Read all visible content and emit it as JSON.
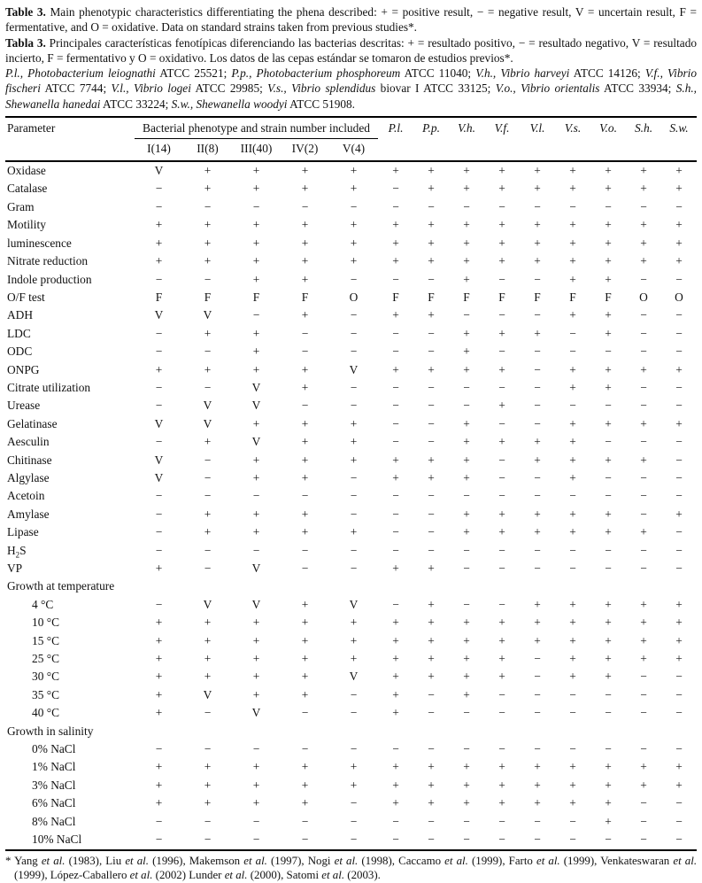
{
  "captions": [
    {
      "name": "caption-english",
      "segments": [
        {
          "t": "Table 3.",
          "b": true
        },
        {
          "t": " Main phenotypic characteristics differentiating the phena described: + = positive result, − = negative result, V = uncertain result, F = fermentative, and O = oxidative. Data on standard strains taken from previous studies*."
        }
      ]
    },
    {
      "name": "caption-spanish",
      "segments": [
        {
          "t": "Tabla 3.",
          "b": true
        },
        {
          "t": " Principales características fenotípicas diferenciando las bacterias descritas: + = resultado positivo, − = resultado negativo, V = resultado incierto, F = fermentativo y O = oxidativo. Los datos de las cepas estándar se tomaron de estudios previos*."
        }
      ]
    },
    {
      "name": "caption-abbreviations",
      "segments": [
        {
          "t": "P.l., Photobacterium leiognathi",
          "i": true
        },
        {
          "t": " ATCC 25521; "
        },
        {
          "t": "P.p., Photobacterium phosphoreum",
          "i": true
        },
        {
          "t": " ATCC 11040; "
        },
        {
          "t": "V.h., Vibrio harveyi",
          "i": true
        },
        {
          "t": " ATCC 14126; "
        },
        {
          "t": "V.f., Vibrio fischeri",
          "i": true
        },
        {
          "t": " ATCC 7744; "
        },
        {
          "t": "V.l., Vibrio logei",
          "i": true
        },
        {
          "t": " ATCC 29985; "
        },
        {
          "t": "V.s., Vibrio splendidus",
          "i": true
        },
        {
          "t": " biovar I ATCC 33125; "
        },
        {
          "t": "V.o., Vibrio orientalis",
          "i": true
        },
        {
          "t": " ATCC 33934; "
        },
        {
          "t": "S.h., Shewanella hanedai",
          "i": true
        },
        {
          "t": " ATCC 33224; "
        },
        {
          "t": "S.w., Shewanella woodyi",
          "i": true
        },
        {
          "t": " ATCC 51908."
        }
      ]
    }
  ],
  "table": {
    "param_header": "Parameter",
    "group_header": "Bacterial phenotype and strain number included",
    "phenon_headers": [
      "I(14)",
      "II(8)",
      "III(40)",
      "IV(2)",
      "V(4)"
    ],
    "strain_headers": [
      "P.l.",
      "P.p.",
      "V.h.",
      "V.f.",
      "V.l.",
      "V.s.",
      "V.o.",
      "S.h.",
      "S.w."
    ],
    "rows": [
      {
        "label": "Oxidase",
        "values": [
          "V",
          "+",
          "+",
          "+",
          "+",
          "+",
          "+",
          "+",
          "+",
          "+",
          "+",
          "+",
          "+",
          "+"
        ]
      },
      {
        "label": "Catalase",
        "values": [
          "−",
          "+",
          "+",
          "+",
          "+",
          "−",
          "+",
          "+",
          "+",
          "+",
          "+",
          "+",
          "+",
          "+"
        ]
      },
      {
        "label": "Gram",
        "values": [
          "−",
          "−",
          "−",
          "−",
          "−",
          "−",
          "−",
          "−",
          "−",
          "−",
          "−",
          "−",
          "−",
          "−"
        ]
      },
      {
        "label": "Motility",
        "values": [
          "+",
          "+",
          "+",
          "+",
          "+",
          "+",
          "+",
          "+",
          "+",
          "+",
          "+",
          "+",
          "+",
          "+"
        ]
      },
      {
        "label": "luminescence",
        "values": [
          "+",
          "+",
          "+",
          "+",
          "+",
          "+",
          "+",
          "+",
          "+",
          "+",
          "+",
          "+",
          "+",
          "+"
        ]
      },
      {
        "label": "Nitrate reduction",
        "values": [
          "+",
          "+",
          "+",
          "+",
          "+",
          "+",
          "+",
          "+",
          "+",
          "+",
          "+",
          "+",
          "+",
          "+"
        ]
      },
      {
        "label": "Indole production",
        "values": [
          "−",
          "−",
          "+",
          "+",
          "−",
          "−",
          "−",
          "+",
          "−",
          "−",
          "+",
          "+",
          "−",
          "−"
        ]
      },
      {
        "label": "O/F test",
        "values": [
          "F",
          "F",
          "F",
          "F",
          "O",
          "F",
          "F",
          "F",
          "F",
          "F",
          "F",
          "F",
          "O",
          "O"
        ]
      },
      {
        "label": "ADH",
        "values": [
          "V",
          "V",
          "−",
          "+",
          "−",
          "+",
          "+",
          "−",
          "−",
          "−",
          "+",
          "+",
          "−",
          "−"
        ]
      },
      {
        "label": "LDC",
        "values": [
          "−",
          "+",
          "+",
          "−",
          "−",
          "−",
          "−",
          "+",
          "+",
          "+",
          "−",
          "+",
          "−",
          "−"
        ]
      },
      {
        "label": "ODC",
        "values": [
          "−",
          "−",
          "+",
          "−",
          "−",
          "−",
          "−",
          "+",
          "−",
          "−",
          "−",
          "−",
          "−",
          "−"
        ]
      },
      {
        "label": "ONPG",
        "values": [
          "+",
          "+",
          "+",
          "+",
          "V",
          "+",
          "+",
          "+",
          "+",
          "−",
          "+",
          "+",
          "+",
          "+"
        ]
      },
      {
        "label": "Citrate utilization",
        "values": [
          "−",
          "−",
          "V",
          "+",
          "−",
          "−",
          "−",
          "−",
          "−",
          "−",
          "+",
          "+",
          "−",
          "−"
        ]
      },
      {
        "label": "Urease",
        "values": [
          "−",
          "V",
          "V",
          "−",
          "−",
          "−",
          "−",
          "−",
          "+",
          "−",
          "−",
          "−",
          "−",
          "−"
        ]
      },
      {
        "label": "Gelatinase",
        "values": [
          "V",
          "V",
          "+",
          "+",
          "+",
          "−",
          "−",
          "+",
          "−",
          "−",
          "+",
          "+",
          "+",
          "+"
        ]
      },
      {
        "label": "Aesculin",
        "values": [
          "−",
          "+",
          "V",
          "+",
          "+",
          "−",
          "−",
          "+",
          "+",
          "+",
          "+",
          "−",
          "−",
          "−"
        ]
      },
      {
        "label": "Chitinase",
        "values": [
          "V",
          "−",
          "+",
          "+",
          "+",
          "+",
          "+",
          "+",
          "−",
          "+",
          "+",
          "+",
          "+",
          "−"
        ]
      },
      {
        "label": "Algylase",
        "values": [
          "V",
          "−",
          "+",
          "+",
          "−",
          "+",
          "+",
          "+",
          "−",
          "−",
          "+",
          "−",
          "−",
          "−"
        ]
      },
      {
        "label": "Acetoin",
        "values": [
          "−",
          "−",
          "−",
          "−",
          "−",
          "−",
          "−",
          "−",
          "−",
          "−",
          "−",
          "−",
          "−",
          "−"
        ]
      },
      {
        "label": "Amylase",
        "values": [
          "−",
          "+",
          "+",
          "+",
          "−",
          "−",
          "−",
          "+",
          "+",
          "+",
          "+",
          "+",
          "−",
          "+"
        ]
      },
      {
        "label": "Lipase",
        "values": [
          "−",
          "+",
          "+",
          "+",
          "+",
          "−",
          "−",
          "+",
          "+",
          "+",
          "+",
          "+",
          "+",
          "−"
        ]
      },
      {
        "label": "H₂S",
        "label_segments": [
          {
            "t": "H"
          },
          {
            "t": "2",
            "sub": true
          },
          {
            "t": "S"
          }
        ],
        "values": [
          "−",
          "−",
          "−",
          "−",
          "−",
          "−",
          "−",
          "−",
          "−",
          "−",
          "−",
          "−",
          "−",
          "−"
        ]
      },
      {
        "label": "VP",
        "values": [
          "+",
          "−",
          "V",
          "−",
          "−",
          "+",
          "+",
          "−",
          "−",
          "−",
          "−",
          "−",
          "−",
          "−"
        ]
      },
      {
        "label": "Growth at temperature",
        "section": true
      },
      {
        "label": "4 °C",
        "indent": true,
        "values": [
          "−",
          "V",
          "V",
          "+",
          "V",
          "−",
          "+",
          "−",
          "−",
          "+",
          "+",
          "+",
          "+",
          "+"
        ]
      },
      {
        "label": "10 °C",
        "indent": true,
        "values": [
          "+",
          "+",
          "+",
          "+",
          "+",
          "+",
          "+",
          "+",
          "+",
          "+",
          "+",
          "+",
          "+",
          "+"
        ]
      },
      {
        "label": "15 °C",
        "indent": true,
        "values": [
          "+",
          "+",
          "+",
          "+",
          "+",
          "+",
          "+",
          "+",
          "+",
          "+",
          "+",
          "+",
          "+",
          "+"
        ]
      },
      {
        "label": "25 °C",
        "indent": true,
        "values": [
          "+",
          "+",
          "+",
          "+",
          "+",
          "+",
          "+",
          "+",
          "+",
          "−",
          "+",
          "+",
          "+",
          "+"
        ]
      },
      {
        "label": "30 °C",
        "indent": true,
        "values": [
          "+",
          "+",
          "+",
          "+",
          "V",
          "+",
          "+",
          "+",
          "+",
          "−",
          "+",
          "+",
          "−",
          "−"
        ]
      },
      {
        "label": "35 °C",
        "indent": true,
        "values": [
          "+",
          "V",
          "+",
          "+",
          "−",
          "+",
          "−",
          "+",
          "−",
          "−",
          "−",
          "−",
          "−",
          "−"
        ]
      },
      {
        "label": "40 °C",
        "indent": true,
        "values": [
          "+",
          "−",
          "V",
          "−",
          "−",
          "+",
          "−",
          "−",
          "−",
          "−",
          "−",
          "−",
          "−",
          "−"
        ]
      },
      {
        "label": "Growth in salinity",
        "section": true
      },
      {
        "label": "0% NaCl",
        "indent": true,
        "values": [
          "−",
          "−",
          "−",
          "−",
          "−",
          "−",
          "−",
          "−",
          "−",
          "−",
          "−",
          "−",
          "−",
          "−"
        ]
      },
      {
        "label": "1% NaCl",
        "indent": true,
        "values": [
          "+",
          "+",
          "+",
          "+",
          "+",
          "+",
          "+",
          "+",
          "+",
          "+",
          "+",
          "+",
          "+",
          "+"
        ]
      },
      {
        "label": "3% NaCl",
        "indent": true,
        "values": [
          "+",
          "+",
          "+",
          "+",
          "+",
          "+",
          "+",
          "+",
          "+",
          "+",
          "+",
          "+",
          "+",
          "+"
        ]
      },
      {
        "label": "6% NaCl",
        "indent": true,
        "values": [
          "+",
          "+",
          "+",
          "+",
          "−",
          "+",
          "+",
          "+",
          "+",
          "+",
          "+",
          "+",
          "−",
          "−"
        ]
      },
      {
        "label": "8% NaCl",
        "indent": true,
        "values": [
          "−",
          "−",
          "−",
          "−",
          "−",
          "−",
          "−",
          "−",
          "−",
          "−",
          "−",
          "+",
          "−",
          "−"
        ]
      },
      {
        "label": "10% NaCl",
        "indent": true,
        "values": [
          "−",
          "−",
          "−",
          "−",
          "−",
          "−",
          "−",
          "−",
          "−",
          "−",
          "−",
          "−",
          "−",
          "−"
        ]
      }
    ]
  },
  "footnote": {
    "segments": [
      {
        "t": "* Yang "
      },
      {
        "t": "et al.",
        "i": true
      },
      {
        "t": " (1983), Liu "
      },
      {
        "t": "et al.",
        "i": true
      },
      {
        "t": " (1996),  Makemson "
      },
      {
        "t": "et al.",
        "i": true
      },
      {
        "t": " (1997), Nogi "
      },
      {
        "t": "et al.",
        "i": true
      },
      {
        "t": " (1998), Caccamo "
      },
      {
        "t": "et al.",
        "i": true
      },
      {
        "t": " (1999), Farto "
      },
      {
        "t": "et al.",
        "i": true
      },
      {
        "t": " (1999), Venkateswaran "
      },
      {
        "t": "et al.",
        "i": true
      },
      {
        "t": " (1999), López-Caballero "
      },
      {
        "t": "et al.",
        "i": true
      },
      {
        "t": " (2002) Lunder "
      },
      {
        "t": "et al.",
        "i": true
      },
      {
        "t": " (2000),  Satomi "
      },
      {
        "t": "et al.",
        "i": true
      },
      {
        "t": " (2003)."
      }
    ]
  }
}
